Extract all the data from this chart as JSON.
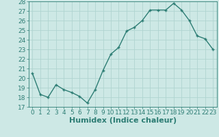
{
  "x": [
    0,
    1,
    2,
    3,
    4,
    5,
    6,
    7,
    8,
    9,
    10,
    11,
    12,
    13,
    14,
    15,
    16,
    17,
    18,
    19,
    20,
    21,
    22,
    23
  ],
  "y": [
    20.5,
    18.3,
    18.0,
    19.3,
    18.8,
    18.5,
    18.1,
    17.4,
    18.8,
    20.8,
    22.5,
    23.2,
    24.9,
    25.3,
    26.0,
    27.1,
    27.1,
    27.1,
    27.8,
    27.1,
    26.0,
    24.4,
    24.1,
    23.0
  ],
  "xlim": [
    -0.5,
    23.5
  ],
  "ylim": [
    17,
    28
  ],
  "yticks": [
    17,
    18,
    19,
    20,
    21,
    22,
    23,
    24,
    25,
    26,
    27,
    28
  ],
  "xticks": [
    0,
    1,
    2,
    3,
    4,
    5,
    6,
    7,
    8,
    9,
    10,
    11,
    12,
    13,
    14,
    15,
    16,
    17,
    18,
    19,
    20,
    21,
    22,
    23
  ],
  "xlabel": "Humidex (Indice chaleur)",
  "line_color": "#2d7d74",
  "bg_color": "#cde8e5",
  "grid_color": "#b0d4d0",
  "xlabel_fontsize": 8,
  "tick_fontsize": 6.5,
  "linewidth": 1.0,
  "markersize": 3.5
}
